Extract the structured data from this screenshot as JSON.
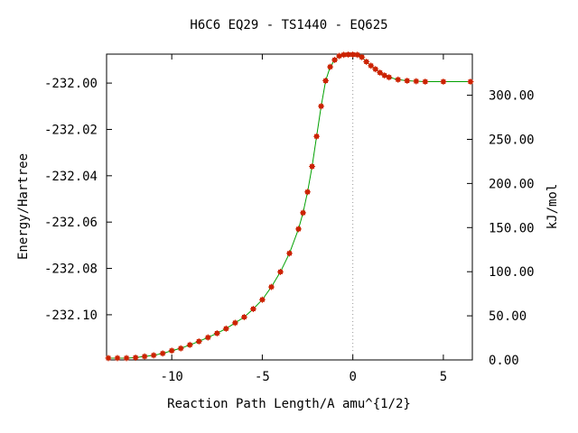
{
  "chart_data": {
    "type": "line",
    "title": "H6C6   EQ29 - TS1440 - EQ625",
    "xlabel": "Reaction Path Length/A amu^{1/2}",
    "ylabel": "Energy/Hartree",
    "y2label": "kJ/mol",
    "xlim": [
      -13.6,
      6.6
    ],
    "ylim": [
      -232.1195,
      -231.9875
    ],
    "y2lim": [
      0.0,
      346.6
    ],
    "x_ticks": [
      -10,
      -5,
      0,
      5
    ],
    "x_tick_labels": [
      "-10",
      "-5",
      "0",
      "5"
    ],
    "y_ticks": [
      -232.0,
      -232.02,
      -232.04,
      -232.06,
      -232.08,
      -232.1
    ],
    "y_tick_labels": [
      "-232.00",
      "-232.02",
      "-232.04",
      "-232.06",
      "-232.08",
      "-232.10"
    ],
    "y2_ticks": [
      0,
      50,
      100,
      150,
      200,
      250,
      300
    ],
    "y2_tick_labels": [
      "0.00",
      "50.00",
      "100.00",
      "150.00",
      "200.00",
      "250.00",
      "300.00"
    ],
    "ts_marker_x": 0,
    "line_color": "#00a000",
    "marker_color": "#cc2200",
    "guide_color": "#999999",
    "series": [
      {
        "x": [
          -13.5,
          -13.0,
          -12.5,
          -12.0,
          -11.5,
          -11.0,
          -10.5,
          -10.0,
          -9.5,
          -9.0,
          -8.5,
          -8.0,
          -7.5,
          -7.0,
          -6.5,
          -6.0,
          -5.5,
          -5.0,
          -4.5,
          -4.0,
          -3.5,
          -3.0,
          -2.75,
          -2.5,
          -2.25,
          -2.0,
          -1.75,
          -1.5,
          -1.25,
          -1.0,
          -0.75,
          -0.5,
          -0.25,
          0.0,
          0.25,
          0.5,
          0.75,
          1.0,
          1.25,
          1.5,
          1.75,
          2.0,
          2.5,
          3.0,
          3.5,
          4.0,
          5.0,
          6.5
        ],
        "y": [
          -232.1187,
          -232.1187,
          -232.1187,
          -232.1185,
          -232.118,
          -232.1175,
          -232.1167,
          -232.1155,
          -232.1145,
          -232.113,
          -232.1115,
          -232.1098,
          -232.108,
          -232.106,
          -232.1035,
          -232.101,
          -232.0975,
          -232.0935,
          -232.088,
          -232.0815,
          -232.0735,
          -232.063,
          -232.056,
          -232.047,
          -232.036,
          -232.023,
          -232.01,
          -231.999,
          -231.993,
          -231.99,
          -231.9883,
          -231.9878,
          -231.9877,
          -231.9877,
          -231.9878,
          -231.9888,
          -231.9908,
          -231.9925,
          -231.994,
          -231.9955,
          -231.9967,
          -231.9975,
          -231.9985,
          -231.999,
          -231.9992,
          -231.9994,
          -231.9994,
          -231.9994
        ]
      }
    ]
  }
}
